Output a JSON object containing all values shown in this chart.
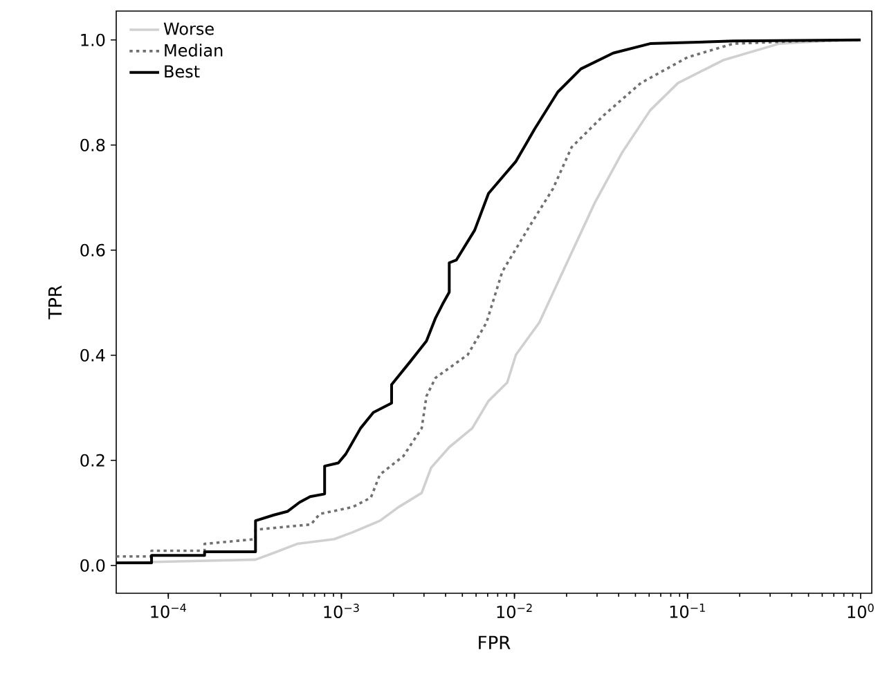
{
  "chart_data": {
    "type": "line",
    "xlabel": "FPR",
    "ylabel": "TPR",
    "log": "x",
    "xlim": [
      5e-05,
      1.16
    ],
    "ylim": [
      -0.053,
      1.055
    ],
    "xticks": [
      {
        "value": 0.0001,
        "label": "10$^{−4}$"
      },
      {
        "value": 0.001,
        "label": "10$^{−3}$"
      },
      {
        "value": 0.01,
        "label": "10$^{−2}$"
      },
      {
        "value": 0.1,
        "label": "10$^{−1}$"
      },
      {
        "value": 1,
        "label": "10$^{0}$"
      }
    ],
    "yticks": [
      {
        "value": 0,
        "label": "0.0"
      },
      {
        "value": 0.2,
        "label": "0.2"
      },
      {
        "value": 0.4,
        "label": "0.4"
      },
      {
        "value": 0.6,
        "label": "0.6"
      },
      {
        "value": 0.8,
        "label": "0.8"
      },
      {
        "value": 1,
        "label": "1.0"
      }
    ],
    "legend": "top left",
    "series": [
      {
        "name": "Worse",
        "color": "#d0d0d0",
        "line_style": "solid",
        "x": [
          5e-05,
          0.000319,
          0.000408,
          0.000555,
          0.000908,
          0.00116,
          0.00167,
          0.00214,
          0.00291,
          0.0033,
          0.0042,
          0.0057,
          0.00708,
          0.00908,
          0.0102,
          0.0139,
          0.0201,
          0.0291,
          0.0421,
          0.0608,
          0.088,
          0.162,
          0.339,
          0.628,
          1
        ],
        "values": [
          0.005,
          0.011,
          0.024,
          0.041,
          0.05,
          0.063,
          0.085,
          0.111,
          0.138,
          0.186,
          0.225,
          0.261,
          0.313,
          0.348,
          0.401,
          0.462,
          0.576,
          0.69,
          0.787,
          0.866,
          0.918,
          0.962,
          0.993,
          0.998,
          1.0
        ]
      },
      {
        "name": "Median",
        "color": "#707070",
        "line_style": "dotted",
        "x": [
          5e-05,
          8e-05,
          8e-05,
          0.000162,
          0.000162,
          0.000319,
          0.000319,
          0.000667,
          0.00075,
          0.00116,
          0.00148,
          0.00167,
          0.00228,
          0.00291,
          0.0031,
          0.0035,
          0.00537,
          0.00689,
          0.0085,
          0.0123,
          0.0167,
          0.0214,
          0.0329,
          0.0537,
          0.1,
          0.184,
          0.461,
          1
        ],
        "values": [
          0.017,
          0.017,
          0.028,
          0.028,
          0.041,
          0.05,
          0.068,
          0.078,
          0.098,
          0.111,
          0.129,
          0.173,
          0.208,
          0.261,
          0.322,
          0.357,
          0.401,
          0.462,
          0.559,
          0.647,
          0.717,
          0.796,
          0.857,
          0.918,
          0.967,
          0.993,
          0.998,
          1.0
        ]
      },
      {
        "name": "Best",
        "color": "#000000",
        "line_style": "solid",
        "x": [
          5e-05,
          8e-05,
          8e-05,
          0.000162,
          0.000162,
          0.000319,
          0.000319,
          0.000408,
          0.00049,
          0.000573,
          0.00066,
          0.0008,
          0.0008,
          0.00096,
          0.00106,
          0.00129,
          0.00153,
          0.00195,
          0.00195,
          0.0025,
          0.0031,
          0.0035,
          0.00384,
          0.0042,
          0.0042,
          0.00461,
          0.00589,
          0.00708,
          0.0102,
          0.0131,
          0.0178,
          0.0242,
          0.0372,
          0.0608,
          0.184,
          1
        ],
        "values": [
          0.005,
          0.005,
          0.019,
          0.019,
          0.026,
          0.026,
          0.085,
          0.096,
          0.103,
          0.12,
          0.131,
          0.136,
          0.189,
          0.195,
          0.212,
          0.261,
          0.291,
          0.309,
          0.344,
          0.388,
          0.427,
          0.471,
          0.497,
          0.52,
          0.576,
          0.581,
          0.638,
          0.708,
          0.769,
          0.831,
          0.901,
          0.945,
          0.975,
          0.993,
          0.998,
          1.0
        ]
      }
    ]
  }
}
